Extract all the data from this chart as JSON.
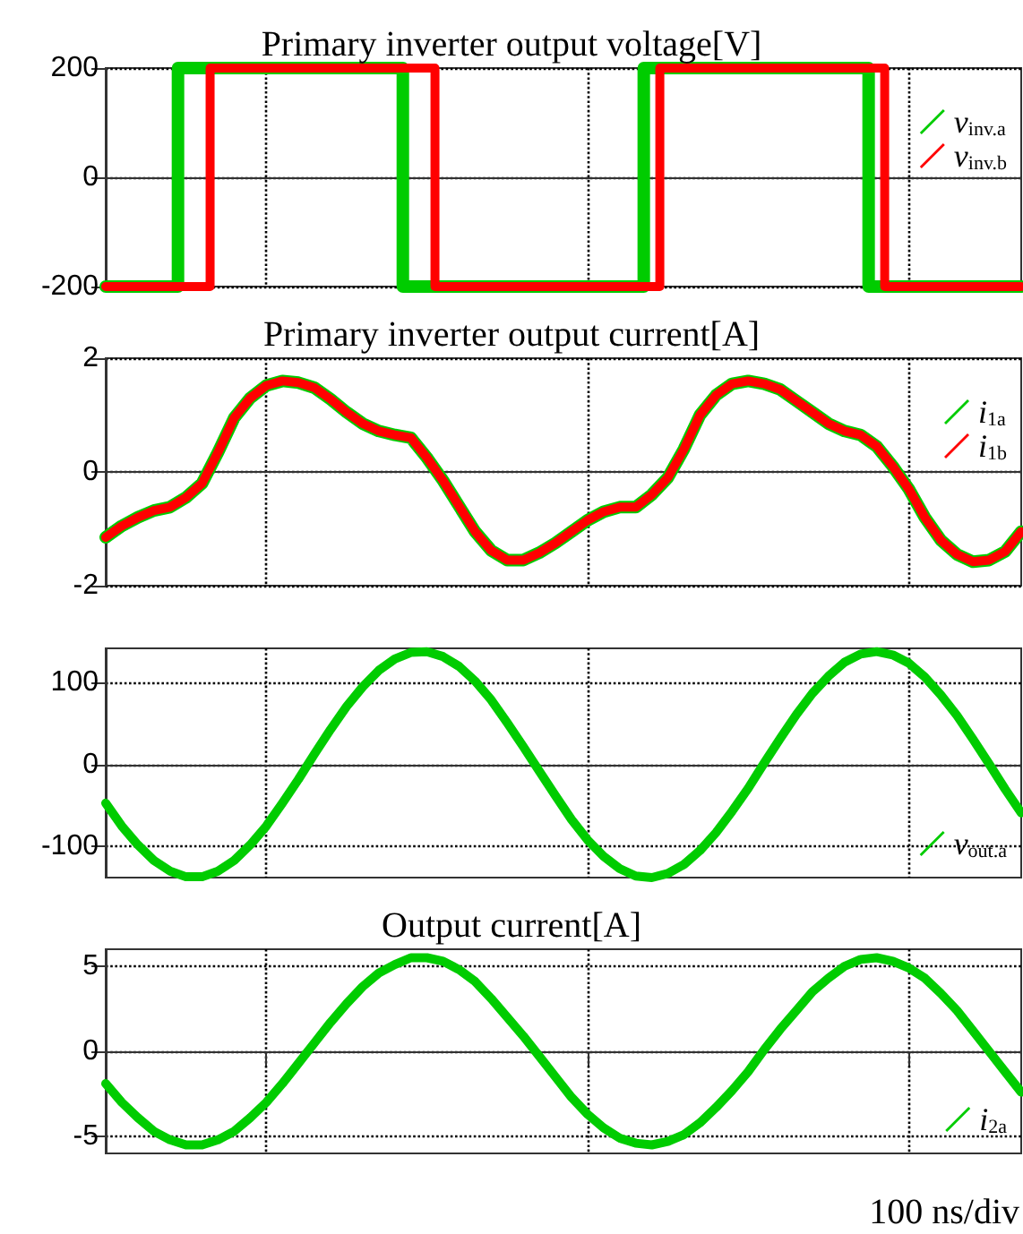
{
  "chart_data": [
    {
      "type": "step",
      "title": "Primary inverter output voltage[V]",
      "categories": [
        null,
        null,
        null,
        null,
        null,
        null,
        null,
        null,
        null,
        null,
        null,
        null,
        null,
        null,
        null,
        null,
        null,
        null,
        null,
        null,
        null,
        null,
        null,
        null,
        null,
        null,
        null,
        null,
        null,
        null,
        null,
        null,
        null,
        null,
        null,
        null,
        null,
        null,
        null,
        null,
        null,
        null,
        null,
        null,
        null,
        null,
        null,
        null,
        null,
        null,
        null,
        null,
        null,
        null,
        null,
        null,
        null,
        null
      ],
      "series": [
        {
          "name": "v$_{inv.a}$",
          "color": "#00cc00",
          "values": [
            -200,
            -200,
            -200,
            -200,
            -200,
            200,
            200,
            200,
            200,
            200,
            200,
            200,
            200,
            200,
            200,
            200,
            200,
            200,
            200,
            -200,
            -200,
            -200,
            -200,
            -200,
            -200,
            -200,
            -200,
            -200,
            -200,
            -200,
            -200,
            -200,
            -200,
            -200,
            200,
            200,
            200,
            200,
            200,
            200,
            200,
            200,
            200,
            200,
            200,
            200,
            200,
            200,
            -200,
            -200,
            -200,
            -200,
            -200,
            -200,
            -200,
            -200,
            -200,
            -200
          ]
        },
        {
          "name": "v$_{inv.b}$",
          "color": "#ff0000",
          "values": [
            -200,
            -200,
            -200,
            -200,
            -200,
            -200,
            -200,
            200,
            200,
            200,
            200,
            200,
            200,
            200,
            200,
            200,
            200,
            200,
            200,
            200,
            200,
            -200,
            -200,
            -200,
            -200,
            -200,
            -200,
            -200,
            -200,
            -200,
            -200,
            -200,
            -200,
            -200,
            -200,
            200,
            200,
            200,
            200,
            200,
            200,
            200,
            200,
            200,
            200,
            200,
            200,
            200,
            200,
            -200,
            -200,
            -200,
            -200,
            -200,
            -200,
            -200,
            -200,
            -200
          ]
        }
      ],
      "ylim": [
        -200,
        200
      ],
      "yticks": [
        -200,
        0,
        200
      ],
      "grid": true,
      "legend": "top right",
      "tick_labels": "y"
    },
    {
      "type": "line",
      "title": "Primary inverter output current[A]",
      "categories": [
        null,
        null,
        null,
        null,
        null,
        null,
        null,
        null,
        null,
        null,
        null,
        null,
        null,
        null,
        null,
        null,
        null,
        null,
        null,
        null,
        null,
        null,
        null,
        null,
        null,
        null,
        null,
        null,
        null,
        null,
        null,
        null,
        null,
        null,
        null,
        null,
        null,
        null,
        null,
        null,
        null,
        null,
        null,
        null,
        null,
        null,
        null,
        null,
        null,
        null,
        null,
        null,
        null,
        null,
        null,
        null,
        null,
        null
      ],
      "series": [
        {
          "name": "i$_{1a}$",
          "color": "#00cc00",
          "values": [
            -1.15,
            -0.95,
            -0.8,
            -0.68,
            -0.62,
            -0.45,
            -0.2,
            0.35,
            0.95,
            1.3,
            1.52,
            1.6,
            1.57,
            1.48,
            1.28,
            1.05,
            0.85,
            0.72,
            0.65,
            0.6,
            0.25,
            -0.15,
            -0.6,
            -1.05,
            -1.38,
            -1.55,
            -1.55,
            -1.42,
            -1.25,
            -1.05,
            -0.85,
            -0.7,
            -0.62,
            -0.62,
            -0.4,
            -0.1,
            0.4,
            1.0,
            1.35,
            1.55,
            1.6,
            1.55,
            1.45,
            1.25,
            1.05,
            0.85,
            0.72,
            0.65,
            0.45,
            0.1,
            -0.3,
            -0.8,
            -1.2,
            -1.45,
            -1.58,
            -1.55,
            -1.4,
            -1.05
          ]
        },
        {
          "name": "i$_{1b}$",
          "color": "#ff0000",
          "values": [
            -1.15,
            -0.95,
            -0.8,
            -0.68,
            -0.62,
            -0.45,
            -0.2,
            0.35,
            0.95,
            1.3,
            1.52,
            1.6,
            1.57,
            1.48,
            1.28,
            1.05,
            0.85,
            0.72,
            0.65,
            0.6,
            0.25,
            -0.15,
            -0.6,
            -1.05,
            -1.38,
            -1.55,
            -1.55,
            -1.42,
            -1.25,
            -1.05,
            -0.85,
            -0.7,
            -0.62,
            -0.62,
            -0.4,
            -0.1,
            0.4,
            1.0,
            1.35,
            1.55,
            1.6,
            1.55,
            1.45,
            1.25,
            1.05,
            0.85,
            0.72,
            0.65,
            0.45,
            0.1,
            -0.3,
            -0.8,
            -1.2,
            -1.45,
            -1.58,
            -1.55,
            -1.4,
            -1.05
          ]
        }
      ],
      "ylim": [
        -2,
        2
      ],
      "yticks": [
        -2,
        0,
        2
      ],
      "grid": true,
      "legend": "top right",
      "tick_labels": "y"
    },
    {
      "type": "line",
      "categories": [
        null,
        null,
        null,
        null,
        null,
        null,
        null,
        null,
        null,
        null,
        null,
        null,
        null,
        null,
        null,
        null,
        null,
        null,
        null,
        null,
        null,
        null,
        null,
        null,
        null,
        null,
        null,
        null,
        null,
        null,
        null,
        null,
        null,
        null,
        null,
        null,
        null,
        null,
        null,
        null,
        null,
        null,
        null,
        null,
        null,
        null,
        null,
        null,
        null,
        null,
        null,
        null,
        null,
        null,
        null,
        null,
        null,
        null
      ],
      "series": [
        {
          "name": "v$_{out.a}$",
          "color": "#00cc00",
          "values": [
            -47,
            -75,
            -98,
            -117,
            -130,
            -137,
            -137,
            -130,
            -117,
            -98,
            -75,
            -47,
            -18,
            13,
            43,
            71,
            95,
            115,
            129,
            137,
            138,
            132,
            120,
            102,
            79,
            51,
            22,
            -8,
            -38,
            -67,
            -92,
            -112,
            -127,
            -136,
            -138,
            -133,
            -122,
            -105,
            -83,
            -57,
            -29,
            2,
            32,
            61,
            87,
            108,
            125,
            135,
            138,
            134,
            124,
            107,
            85,
            60,
            31,
            1,
            -30,
            -59
          ]
        }
      ],
      "ylim": [
        -138,
        142
      ],
      "yticks": [
        -100,
        0,
        100
      ],
      "grid": true,
      "legend": "bottom right",
      "tick_labels": "y"
    },
    {
      "type": "line",
      "title": "Output current[A]",
      "annotations": [
        "100 ns/div"
      ],
      "categories": [
        null,
        null,
        null,
        null,
        null,
        null,
        null,
        null,
        null,
        null,
        null,
        null,
        null,
        null,
        null,
        null,
        null,
        null,
        null,
        null,
        null,
        null,
        null,
        null,
        null,
        null,
        null,
        null,
        null,
        null,
        null,
        null,
        null,
        null,
        null,
        null,
        null,
        null,
        null,
        null,
        null,
        null,
        null,
        null,
        null,
        null,
        null,
        null,
        null,
        null,
        null,
        null,
        null,
        null,
        null,
        null,
        null,
        null
      ],
      "series": [
        {
          "name": "i$_{2a}$",
          "color": "#00cc00",
          "values": [
            -1.9,
            -3.0,
            -3.9,
            -4.7,
            -5.2,
            -5.5,
            -5.5,
            -5.2,
            -4.7,
            -3.9,
            -3.0,
            -1.9,
            -0.7,
            0.5,
            1.7,
            2.8,
            3.8,
            4.6,
            5.1,
            5.5,
            5.5,
            5.3,
            4.8,
            4.1,
            3.1,
            2.0,
            0.9,
            -0.3,
            -1.5,
            -2.7,
            -3.7,
            -4.5,
            -5.1,
            -5.4,
            -5.5,
            -5.3,
            -4.9,
            -4.2,
            -3.3,
            -2.3,
            -1.2,
            0.1,
            1.3,
            2.4,
            3.5,
            4.3,
            5.0,
            5.4,
            5.5,
            5.3,
            4.9,
            4.3,
            3.4,
            2.4,
            1.2,
            0.0,
            -1.2,
            -2.4
          ]
        }
      ],
      "ylim": [
        -6,
        6
      ],
      "yticks": [
        -5,
        0,
        5
      ],
      "grid": true,
      "legend": "bottom right",
      "tick_labels": "y"
    }
  ]
}
